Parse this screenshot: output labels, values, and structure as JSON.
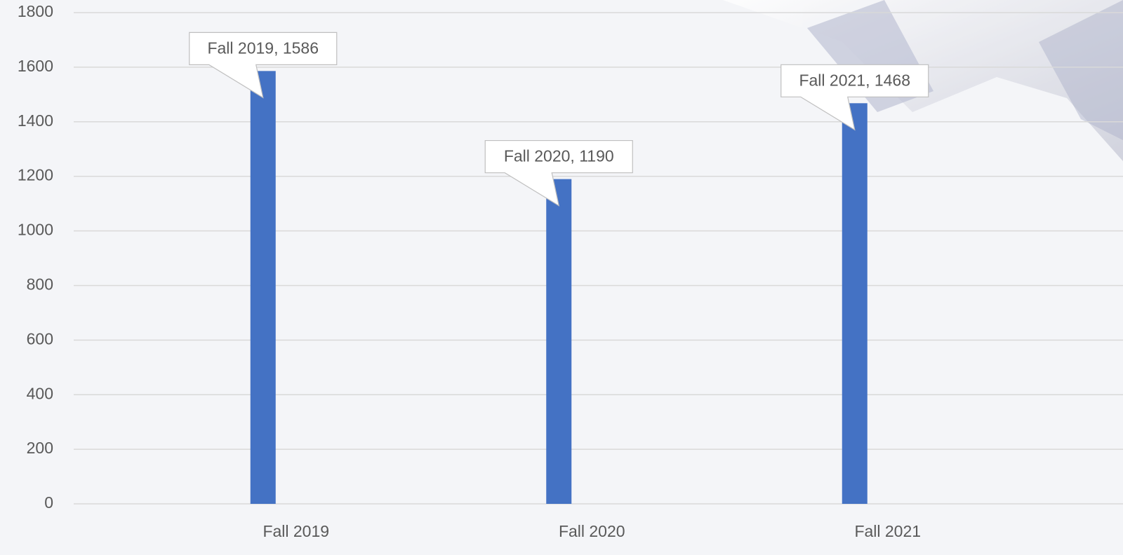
{
  "chart_data": {
    "type": "bar",
    "categories": [
      "Fall 2019",
      "Fall 2020",
      "Fall 2021"
    ],
    "values": [
      1586,
      1190,
      1468
    ],
    "value_labels": [
      "Fall 2019, 1586",
      "Fall 2020, 1190",
      "Fall 2021, 1468"
    ],
    "color": "#4472c4",
    "ylim": [
      0,
      1800
    ],
    "yticks": [
      0,
      200,
      400,
      600,
      800,
      1000,
      1200,
      1400,
      1600,
      1800
    ],
    "grid": true
  }
}
